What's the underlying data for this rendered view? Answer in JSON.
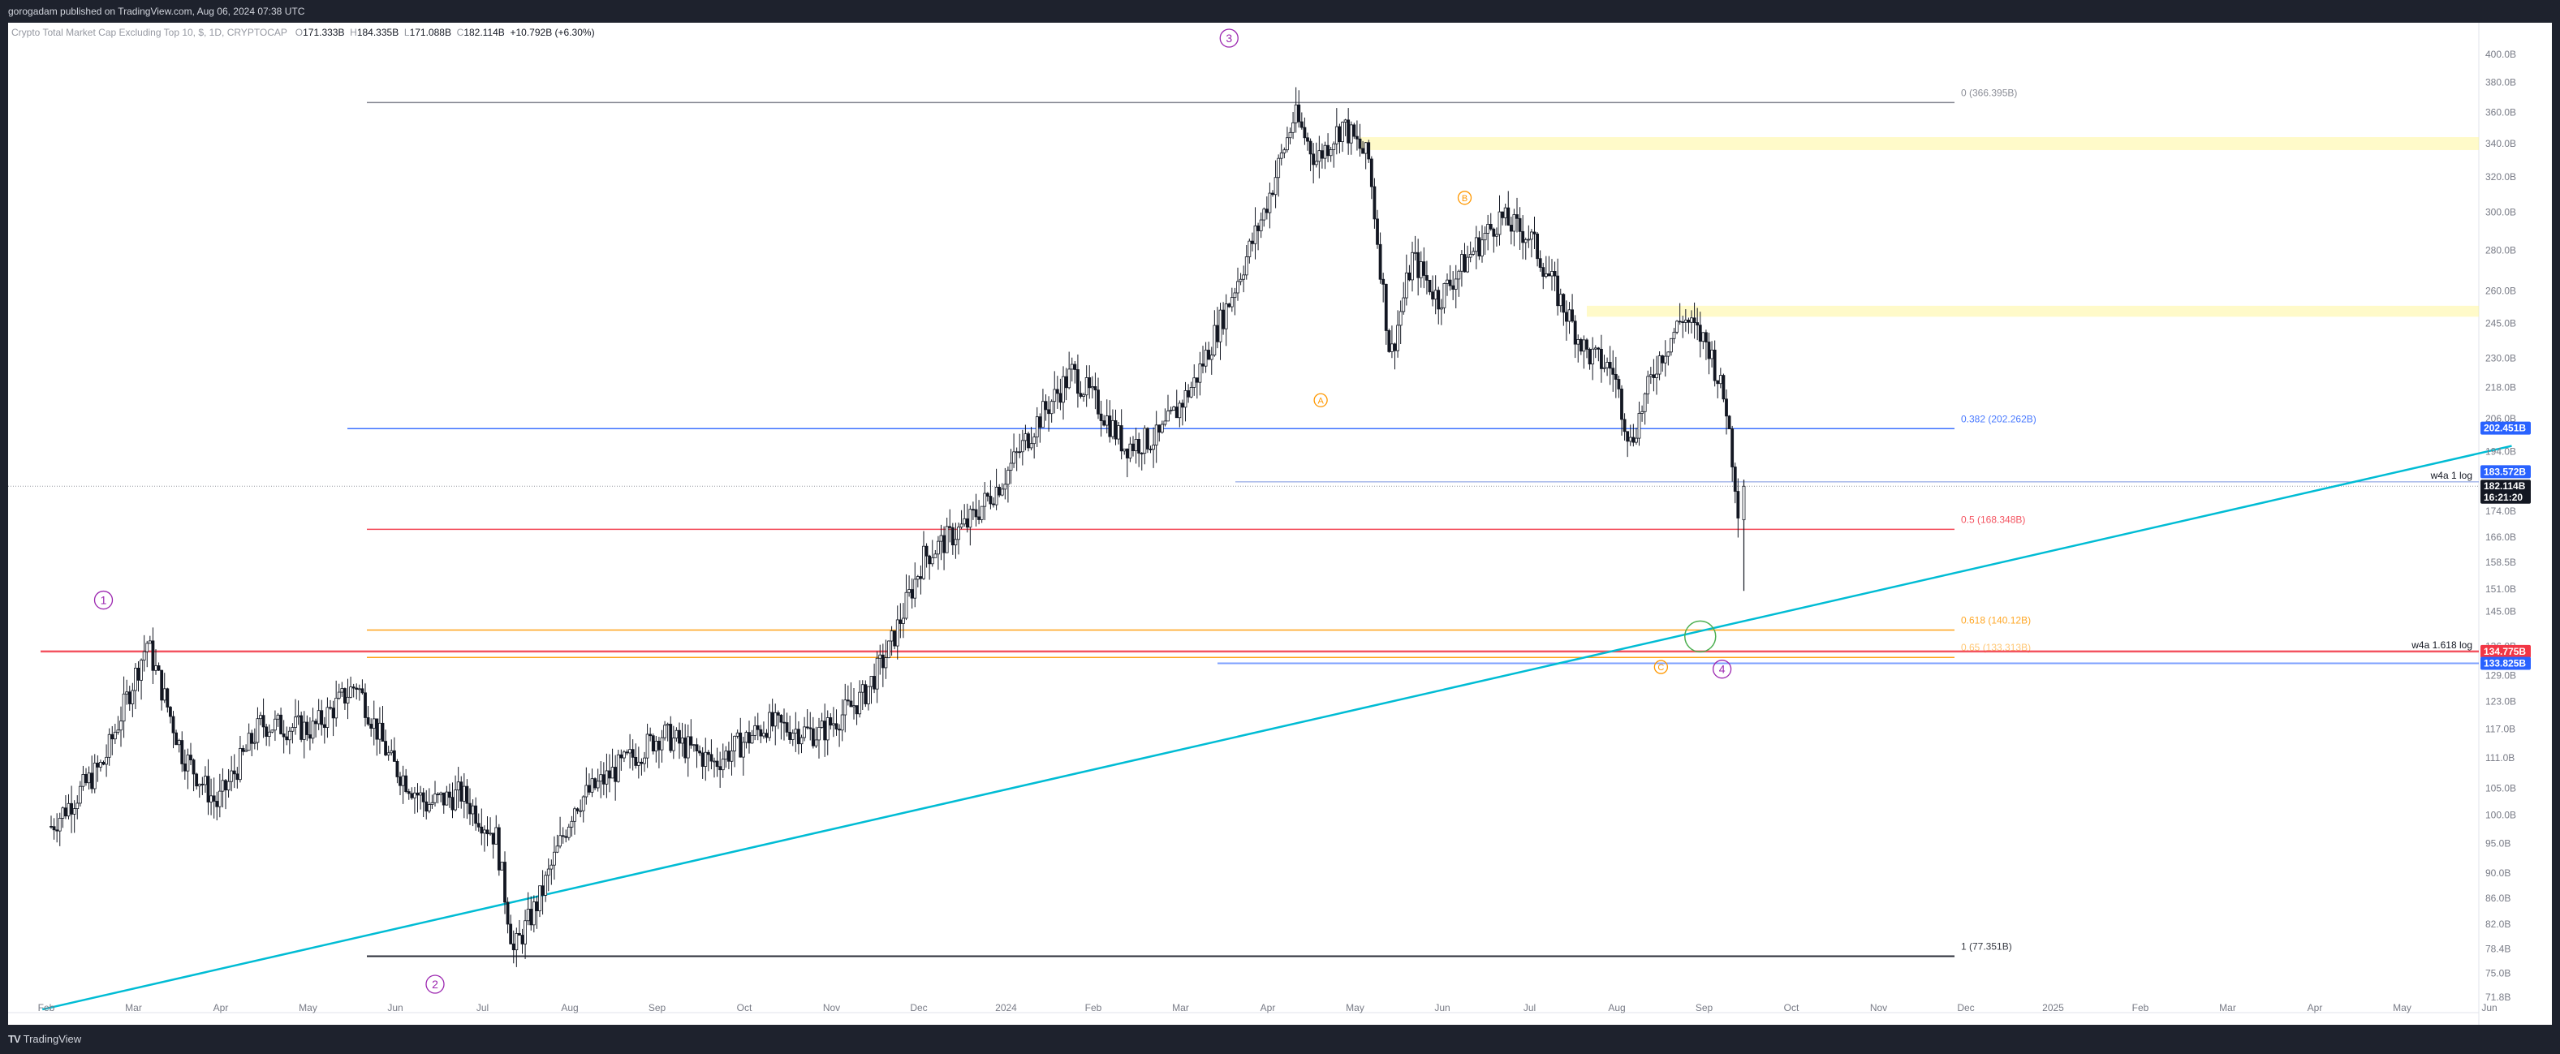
{
  "header": {
    "publish_line": "gorogadam published on TradingView.com, Aug 06, 2024 07:38 UTC"
  },
  "symbol": {
    "title": "Crypto Total Market Cap Excluding Top 10, $, 1D, CRYPTOCAP",
    "open_label": "O",
    "open": "171.333B",
    "high_label": "H",
    "high": "184.335B",
    "low_label": "L",
    "low": "171.088B",
    "close_label": "C",
    "close": "182.114B",
    "change": "+10.792B (+6.30%)"
  },
  "footer": {
    "logo_mark": "TV",
    "brand": "TradingView"
  },
  "colors": {
    "fib_0": "#787b86",
    "fib_0382": "#2962ff",
    "fib_05": "#f23645",
    "fib_0618": "#ff9800",
    "fib_1": "#131722",
    "trendline": "#00bcd4",
    "wave_impulse": "#9c27b0",
    "wave_corrective": "#ff9800",
    "supply_zone": "#fff59d",
    "target_circle": "#4caf50"
  },
  "chart_data": {
    "type": "candlestick",
    "scale": "log",
    "ylim": [
      70,
      420
    ],
    "y_axis_ticks": [
      "400.0B",
      "380.0B",
      "360.0B",
      "340.0B",
      "320.0B",
      "300.0B",
      "280.0B",
      "260.0B",
      "245.0B",
      "230.0B",
      "218.0B",
      "206.0B",
      "194.0B",
      "174.0B",
      "166.0B",
      "158.5B",
      "151.0B",
      "145.0B",
      "136.0B",
      "129.0B",
      "123.0B",
      "117.0B",
      "111.0B",
      "105.0B",
      "100.0B",
      "95.0B",
      "90.0B",
      "86.0B",
      "82.0B",
      "78.4B",
      "75.0B",
      "71.8B"
    ],
    "x_axis_ticks": [
      "Feb",
      "Mar",
      "Apr",
      "May",
      "Jun",
      "Jul",
      "Aug",
      "Sep",
      "Oct",
      "Nov",
      "Dec",
      "2024",
      "Feb",
      "Mar",
      "Apr",
      "May",
      "Jun",
      "Jul",
      "Aug",
      "Sep",
      "Oct",
      "Nov",
      "Dec",
      "2025",
      "Feb",
      "Mar",
      "Apr",
      "May",
      "Jun"
    ],
    "price_path": [
      {
        "month": 0,
        "price": 98
      },
      {
        "month": 0.6,
        "price": 110
      },
      {
        "month": 1.1,
        "price": 137
      },
      {
        "month": 1.5,
        "price": 112
      },
      {
        "month": 1.9,
        "price": 102
      },
      {
        "month": 2.4,
        "price": 118
      },
      {
        "month": 3.0,
        "price": 117
      },
      {
        "month": 3.5,
        "price": 127
      },
      {
        "month": 3.9,
        "price": 110
      },
      {
        "month": 4.3,
        "price": 102
      },
      {
        "month": 4.7,
        "price": 104
      },
      {
        "month": 5.1,
        "price": 96
      },
      {
        "month": 5.3,
        "price": 78
      },
      {
        "month": 5.6,
        "price": 86
      },
      {
        "month": 6.0,
        "price": 102
      },
      {
        "month": 6.5,
        "price": 109
      },
      {
        "month": 7.0,
        "price": 116
      },
      {
        "month": 7.6,
        "price": 110
      },
      {
        "month": 8.2,
        "price": 118
      },
      {
        "month": 8.8,
        "price": 116
      },
      {
        "month": 9.3,
        "price": 124
      },
      {
        "month": 9.6,
        "price": 135
      },
      {
        "month": 10.0,
        "price": 160
      },
      {
        "month": 10.5,
        "price": 170
      },
      {
        "month": 10.9,
        "price": 184
      },
      {
        "month": 11.3,
        "price": 205
      },
      {
        "month": 11.7,
        "price": 224
      },
      {
        "month": 12.0,
        "price": 211
      },
      {
        "month": 12.3,
        "price": 196
      },
      {
        "month": 12.7,
        "price": 199
      },
      {
        "month": 13.1,
        "price": 220
      },
      {
        "month": 13.5,
        "price": 255
      },
      {
        "month": 13.9,
        "price": 300
      },
      {
        "month": 14.25,
        "price": 358
      },
      {
        "month": 14.5,
        "price": 330
      },
      {
        "month": 14.8,
        "price": 352
      },
      {
        "month": 15.1,
        "price": 330
      },
      {
        "month": 15.35,
        "price": 230
      },
      {
        "month": 15.6,
        "price": 276
      },
      {
        "month": 15.9,
        "price": 256
      },
      {
        "month": 16.3,
        "price": 280
      },
      {
        "month": 16.6,
        "price": 297
      },
      {
        "month": 16.95,
        "price": 287
      },
      {
        "month": 17.3,
        "price": 255
      },
      {
        "month": 17.6,
        "price": 232
      },
      {
        "month": 17.9,
        "price": 225
      },
      {
        "month": 18.1,
        "price": 197
      },
      {
        "month": 18.4,
        "price": 228
      },
      {
        "month": 18.7,
        "price": 248
      },
      {
        "month": 19.0,
        "price": 235
      },
      {
        "month": 19.2,
        "price": 210
      },
      {
        "month": 19.35,
        "price": 172
      }
    ],
    "fib_retracement": [
      {
        "ratio": "0",
        "label": "0 (366.395B)",
        "price": 366.395
      },
      {
        "ratio": "0.382",
        "label": "0.382 (202.262B)",
        "price": 202.262
      },
      {
        "ratio": "0.5",
        "label": "0.5 (168.348B)",
        "price": 168.348
      },
      {
        "ratio": "0.618",
        "label": "0.618 (140.12B)",
        "price": 140.12
      },
      {
        "ratio": "0.65",
        "label": "0.65 (133.313B)",
        "price": 133.313
      },
      {
        "ratio": "1",
        "label": "1 (77.351B)",
        "price": 77.351
      }
    ],
    "horizontal_lines": [
      {
        "label": "w4a 1 log",
        "price": 183.572
      },
      {
        "label": "w4a 1.618 log",
        "price": 134.775
      }
    ],
    "price_tags": [
      {
        "value": "202.451B",
        "price": 202.451,
        "color": "#2962ff"
      },
      {
        "value": "183.572B",
        "price": 187.0,
        "color": "#2962ff"
      },
      {
        "value": "182.114B",
        "price": 182.114,
        "color": "#131722"
      },
      {
        "value": "16:21:20",
        "price": 178.5,
        "color": "#131722"
      },
      {
        "value": "134.775B",
        "price": 134.775,
        "color": "#f23645"
      },
      {
        "value": "133.825B",
        "price": 131.9,
        "color": "#2962ff"
      }
    ],
    "supply_zones": [
      {
        "from_month": 15.0,
        "to_month": 28.2,
        "low": 336,
        "high": 344
      },
      {
        "from_month": 17.6,
        "to_month": 28.2,
        "low": 248,
        "high": 253
      }
    ],
    "trendline": {
      "from": {
        "month": -0.1,
        "price": 70.2
      },
      "to": {
        "month": 28.2,
        "price": 196
      }
    },
    "elliott_waves": [
      {
        "label": "1",
        "month": 0.6,
        "price": 148,
        "kind": "impulse"
      },
      {
        "label": "2",
        "month": 4.4,
        "price": 73.5,
        "kind": "impulse"
      },
      {
        "label": "3",
        "month": 13.5,
        "price": 412,
        "kind": "impulse"
      },
      {
        "label": "4",
        "month": 19.15,
        "price": 130.5,
        "kind": "impulse"
      },
      {
        "label": "A",
        "month": 14.55,
        "price": 213,
        "kind": "corrective"
      },
      {
        "label": "B",
        "month": 16.2,
        "price": 308,
        "kind": "corrective"
      },
      {
        "label": "C",
        "month": 18.45,
        "price": 131,
        "kind": "corrective"
      }
    ],
    "target_circle": {
      "month": 18.9,
      "price": 138.5
    }
  }
}
